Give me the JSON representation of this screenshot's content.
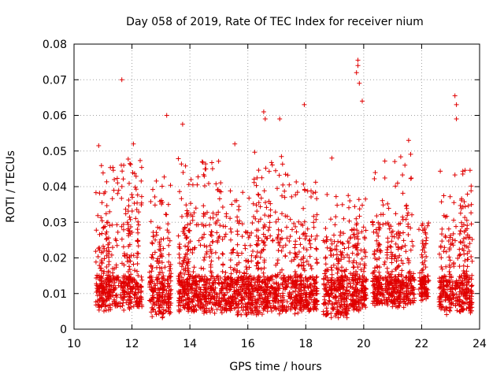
{
  "chart_data": {
    "type": "scatter",
    "title": "Day 058 of 2019, Rate Of TEC Index for receiver nium",
    "xlabel": "GPS time / hours",
    "ylabel": "ROTI / TECUs",
    "xlim": [
      10,
      24
    ],
    "ylim": [
      0,
      0.08
    ],
    "xticks": [
      "10",
      "12",
      "14",
      "16",
      "18",
      "20",
      "22",
      "24"
    ],
    "yticks": [
      "0",
      "0.01",
      "0.02",
      "0.03",
      "0.04",
      "0.05",
      "0.06",
      "0.07",
      "0.08"
    ],
    "grid": true,
    "marker": "+",
    "color": "#e00000",
    "notable_points": [
      [
        10.85,
        0.0515
      ],
      [
        11.65,
        0.07
      ],
      [
        12.05,
        0.052
      ],
      [
        13.2,
        0.06
      ],
      [
        13.75,
        0.0575
      ],
      [
        15.55,
        0.052
      ],
      [
        16.55,
        0.061
      ],
      [
        16.6,
        0.059
      ],
      [
        17.1,
        0.059
      ],
      [
        17.95,
        0.063
      ],
      [
        19.8,
        0.0755
      ],
      [
        19.8,
        0.074
      ],
      [
        19.75,
        0.072
      ],
      [
        19.85,
        0.069
      ],
      [
        19.95,
        0.064
      ],
      [
        21.55,
        0.053
      ],
      [
        23.15,
        0.0655
      ],
      [
        23.2,
        0.063
      ],
      [
        23.2,
        0.059
      ],
      [
        18.9,
        0.048
      ]
    ],
    "clusters": [
      {
        "from": 10.75,
        "to": 11.55,
        "low": 0.005,
        "high": 0.03,
        "spikes": 0.046
      },
      {
        "from": 11.6,
        "to": 12.35,
        "low": 0.005,
        "high": 0.038,
        "spikes": 0.048
      },
      {
        "from": 12.6,
        "to": 13.35,
        "low": 0.003,
        "high": 0.03,
        "spikes": 0.043
      },
      {
        "from": 13.6,
        "to": 15.3,
        "low": 0.004,
        "high": 0.033,
        "spikes": 0.048
      },
      {
        "from": 15.3,
        "to": 16.2,
        "low": 0.004,
        "high": 0.03,
        "spikes": 0.04
      },
      {
        "from": 16.2,
        "to": 17.2,
        "low": 0.004,
        "high": 0.036,
        "spikes": 0.05
      },
      {
        "from": 17.2,
        "to": 18.4,
        "low": 0.004,
        "high": 0.032,
        "spikes": 0.045
      },
      {
        "from": 18.6,
        "to": 19.5,
        "low": 0.003,
        "high": 0.026,
        "spikes": 0.038
      },
      {
        "from": 19.5,
        "to": 20.1,
        "low": 0.005,
        "high": 0.028,
        "spikes": 0.04
      },
      {
        "from": 20.3,
        "to": 21.1,
        "low": 0.006,
        "high": 0.03,
        "spikes": 0.048
      },
      {
        "from": 21.1,
        "to": 21.75,
        "low": 0.006,
        "high": 0.035,
        "spikes": 0.05
      },
      {
        "from": 21.9,
        "to": 22.25,
        "low": 0.008,
        "high": 0.028,
        "spikes": 0.03
      },
      {
        "from": 22.6,
        "to": 23.75,
        "low": 0.004,
        "high": 0.032,
        "spikes": 0.045
      }
    ]
  }
}
